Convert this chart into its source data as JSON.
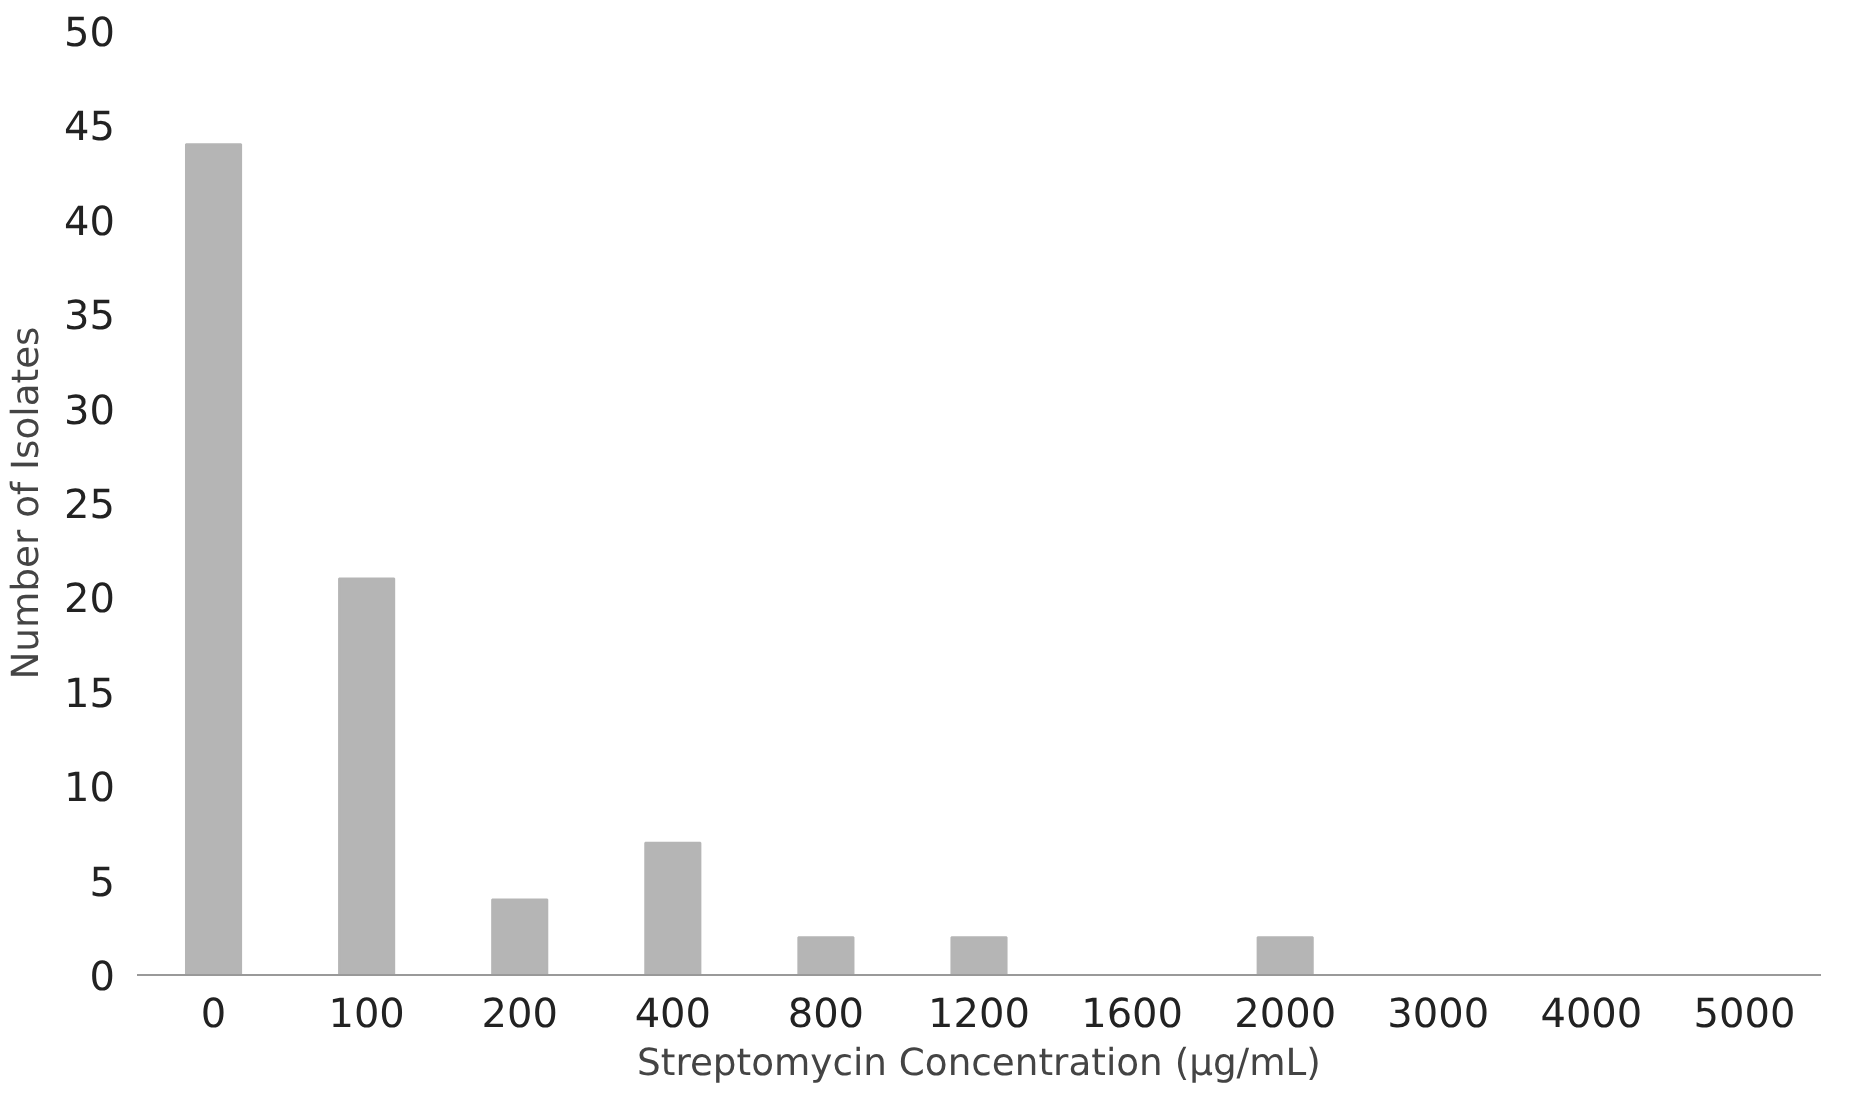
{
  "chart_data": {
    "type": "bar",
    "xlabel": "Streptomycin Concentration (µg/mL)",
    "ylabel": "Number of Isolates",
    "categories": [
      "0",
      "100",
      "200",
      "400",
      "800",
      "1200",
      "1600",
      "2000",
      "3000",
      "4000",
      "5000"
    ],
    "values": [
      44,
      21,
      4,
      7,
      2,
      2,
      0,
      2,
      0,
      0,
      0
    ],
    "color": "#b5b5b5",
    "ylim": [
      0,
      50
    ],
    "yticks": [
      0,
      5,
      10,
      15,
      20,
      25,
      30,
      35,
      40,
      45,
      50
    ],
    "grid": false
  }
}
